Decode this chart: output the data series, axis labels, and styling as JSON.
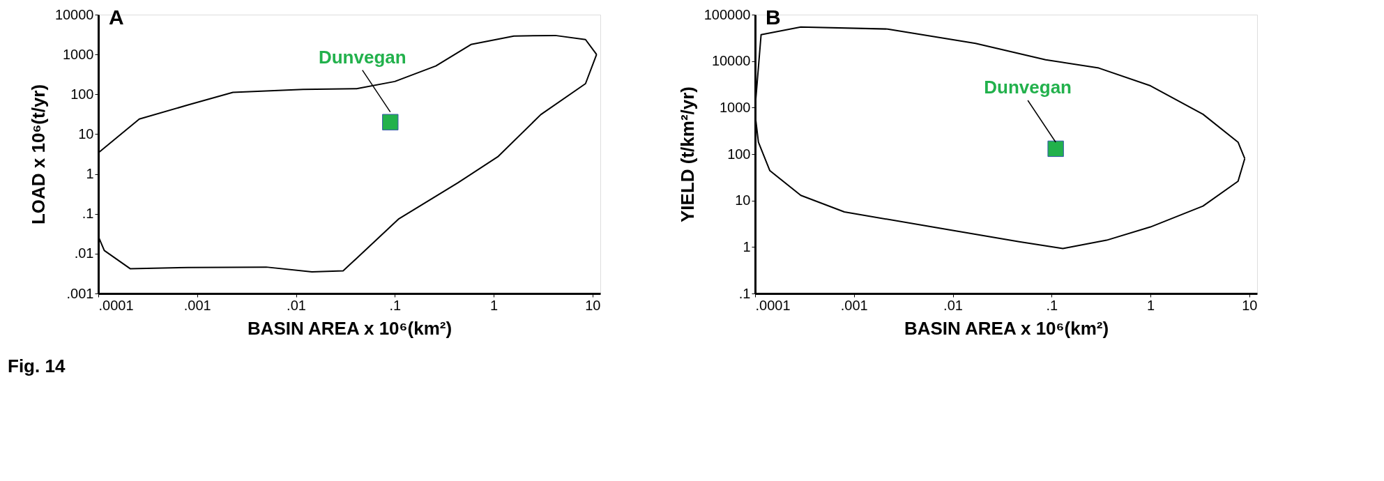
{
  "chart_data": [
    {
      "type": "line",
      "title": "A",
      "xlabel": "BASIN AREA x 10⁶(km²)",
      "ylabel": "LOAD x 10⁶(t/yr)",
      "log": "xy",
      "grid": false,
      "xlim": [
        0.0001,
        12
      ],
      "ylim": [
        0.001,
        10000
      ],
      "xticks": [
        {
          "value": 0.0001,
          "label": ".0001"
        },
        {
          "value": 0.001,
          "label": ".001"
        },
        {
          "value": 0.01,
          "label": ".01"
        },
        {
          "value": 0.1,
          "label": ".1"
        },
        1,
        10
      ],
      "yticks": [
        {
          "value": 0.001,
          "label": ".001"
        },
        {
          "value": 0.01,
          "label": ".01"
        },
        {
          "value": 0.1,
          "label": ".1"
        },
        1,
        10,
        100,
        1000,
        10000
      ],
      "series": [
        {
          "color": "#000000",
          "x": [
            0.0001,
            0.00026,
            0.00081,
            0.0023,
            0.0118,
            0.041,
            0.1,
            0.26,
            0.59,
            1.6,
            4.2,
            8.5,
            11
          ],
          "values": [
            3.4,
            24,
            54,
            112,
            133,
            138,
            210,
            516,
            1780,
            2900,
            3000,
            2370,
            1000
          ]
        },
        {
          "color": "#000000",
          "x": [
            0.0001,
            0.000115,
            0.00021,
            0.00081,
            0.005,
            0.0145,
            0.03,
            0.05,
            0.11,
            0.43,
            1.1,
            3.0,
            8.5,
            11
          ],
          "values": [
            0.027,
            0.012,
            0.0042,
            0.0045,
            0.0046,
            0.0035,
            0.0037,
            0.012,
            0.075,
            0.59,
            2.7,
            31,
            185,
            1000
          ]
        },
        {
          "type": "scatter",
          "color": "#22b14c",
          "marker": "square",
          "x": [
            0.09
          ],
          "values": [
            20
          ]
        }
      ],
      "annotations": [
        {
          "text": "Dunvegan",
          "x": 0.09,
          "y": 36
        },
        "Fig. 14"
      ]
    },
    {
      "type": "line",
      "title": "B",
      "xlabel": "BASIN AREA x 10⁶(km²)",
      "ylabel": "YIELD (t/km²/yr)",
      "log": "xy",
      "grid": false,
      "xlim": [
        0.0001,
        12
      ],
      "ylim": [
        0.1,
        100000
      ],
      "xticks": [
        {
          "value": 0.0001,
          "label": ".0001"
        },
        {
          "value": 0.001,
          "label": ".001"
        },
        {
          "value": 0.01,
          "label": ".01"
        },
        {
          "value": 0.1,
          "label": ".1"
        },
        1,
        10
      ],
      "yticks": [
        {
          "value": 0.1,
          "label": ".1"
        },
        1,
        10,
        100,
        1000,
        10000,
        100000
      ],
      "series": [
        {
          "color": "#000000",
          "x": [
            0.0001,
            0.000115,
            0.00029,
            0.0022,
            0.017,
            0.087,
            0.3,
            1.0,
            3.4,
            7.7,
            9
          ],
          "values": [
            1000,
            37000,
            54000,
            49000,
            24000,
            10700,
            7100,
            2950,
            720,
            180,
            80
          ]
        },
        {
          "color": "#000000",
          "x": [
            0.0001,
            0.000108,
            0.000141,
            0.00029,
            0.0008,
            0.0062,
            0.047,
            0.13,
            0.36,
            1.0,
            3.4,
            7.7,
            9
          ],
          "values": [
            720,
            180,
            44,
            12.9,
            5.7,
            2.7,
            1.3,
            0.93,
            1.4,
            2.7,
            7.6,
            26,
            80
          ]
        },
        {
          "type": "scatter",
          "color": "#22b14c",
          "marker": "square",
          "x": [
            0.11
          ],
          "values": [
            130
          ]
        }
      ],
      "annotations": [
        {
          "text": "Dunvegan",
          "x": 0.11,
          "y": 180
        }
      ]
    }
  ]
}
